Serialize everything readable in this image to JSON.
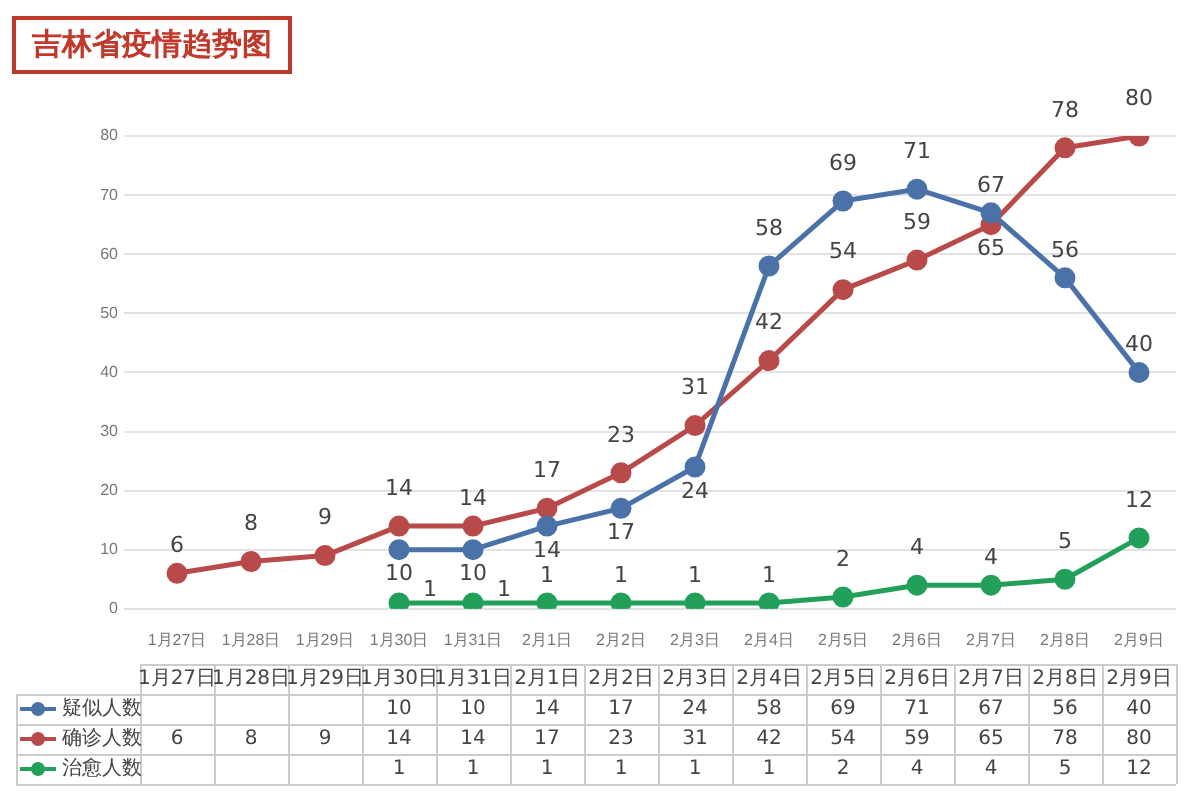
{
  "chart_data": {
    "type": "line",
    "title": "吉林省疫情趋势图",
    "categories": [
      "1月27日",
      "1月28日",
      "1月29日",
      "1月30日",
      "1月31日",
      "2月1日",
      "2月2日",
      "2月3日",
      "2月4日",
      "2月5日",
      "2月6日",
      "2月7日",
      "2月8日",
      "2月9日"
    ],
    "series": [
      {
        "name": "疑似人数",
        "color": "#4a72a8",
        "values": [
          null,
          null,
          null,
          10,
          10,
          14,
          17,
          24,
          58,
          69,
          71,
          67,
          56,
          40
        ]
      },
      {
        "name": "确诊人数",
        "color": "#b84a4a",
        "values": [
          6,
          8,
          9,
          14,
          14,
          17,
          23,
          31,
          42,
          54,
          59,
          65,
          78,
          80
        ]
      },
      {
        "name": "治愈人数",
        "color": "#22a05a",
        "values": [
          null,
          null,
          null,
          1,
          1,
          1,
          1,
          1,
          1,
          2,
          4,
          4,
          5,
          12
        ]
      }
    ],
    "annotations": [
      {
        "text": "10",
        "x": "1月30日",
        "y": 10
      },
      {
        "text": "10",
        "x": "1月31日",
        "y": 10
      },
      {
        "text": "14",
        "x": "2月1日",
        "y": 14
      },
      {
        "text": "17",
        "x": "2月2日",
        "y": 17
      },
      {
        "text": "24",
        "x": "2月3日",
        "y": 24
      },
      {
        "text": "58",
        "x": "2月4日",
        "y": 58
      },
      {
        "text": "69",
        "x": "2月5日",
        "y": 69
      },
      {
        "text": "71",
        "x": "2月6日",
        "y": 71
      },
      {
        "text": "67",
        "x": "2月7日",
        "y": 67
      },
      {
        "text": "56",
        "x": "2月8日",
        "y": 56
      },
      {
        "text": "40",
        "x": "2月9日",
        "y": 40
      },
      {
        "text": "6",
        "x": "1月27日",
        "y": 6
      },
      {
        "text": "8",
        "x": "1月28日",
        "y": 8
      },
      {
        "text": "9",
        "x": "1月29日",
        "y": 9
      },
      {
        "text": "14",
        "x": "1月30日",
        "y": 14
      },
      {
        "text": "14",
        "x": "1月31日",
        "y": 14
      },
      {
        "text": "17",
        "x": "2月1日",
        "y": 17
      },
      {
        "text": "23",
        "x": "2月2日",
        "y": 23
      },
      {
        "text": "31",
        "x": "2月3日",
        "y": 31
      },
      {
        "text": "42",
        "x": "2月4日",
        "y": 42
      },
      {
        "text": "54",
        "x": "2月5日",
        "y": 54
      },
      {
        "text": "59",
        "x": "2月6日",
        "y": 59
      },
      {
        "text": "65",
        "x": "2月7日",
        "y": 65
      },
      {
        "text": "78",
        "x": "2月8日",
        "y": 78
      },
      {
        "text": "80",
        "x": "2月9日",
        "y": 80
      },
      {
        "text": "1",
        "x": "1月30日",
        "y": 1
      },
      {
        "text": "1",
        "x": "1月31日",
        "y": 1
      },
      {
        "text": "1",
        "x": "2月1日",
        "y": 1
      },
      {
        "text": "1",
        "x": "2月2日",
        "y": 1
      },
      {
        "text": "1",
        "x": "2月3日",
        "y": 1
      },
      {
        "text": "1",
        "x": "2月4日",
        "y": 1
      },
      {
        "text": "2",
        "x": "2月5日",
        "y": 2
      },
      {
        "text": "4",
        "x": "2月6日",
        "y": 4
      },
      {
        "text": "4",
        "x": "2月7日",
        "y": 4
      },
      {
        "text": "5",
        "x": "2月8日",
        "y": 5
      },
      {
        "text": "12",
        "x": "2月9日",
        "y": 12
      }
    ],
    "ylim": [
      0,
      80
    ],
    "yticks": [
      0,
      10,
      20,
      30,
      40,
      50,
      60,
      70,
      80
    ],
    "grid": "y",
    "legend": "bottom",
    "marker": "circle",
    "line_style": "solid",
    "data_labels": true
  }
}
